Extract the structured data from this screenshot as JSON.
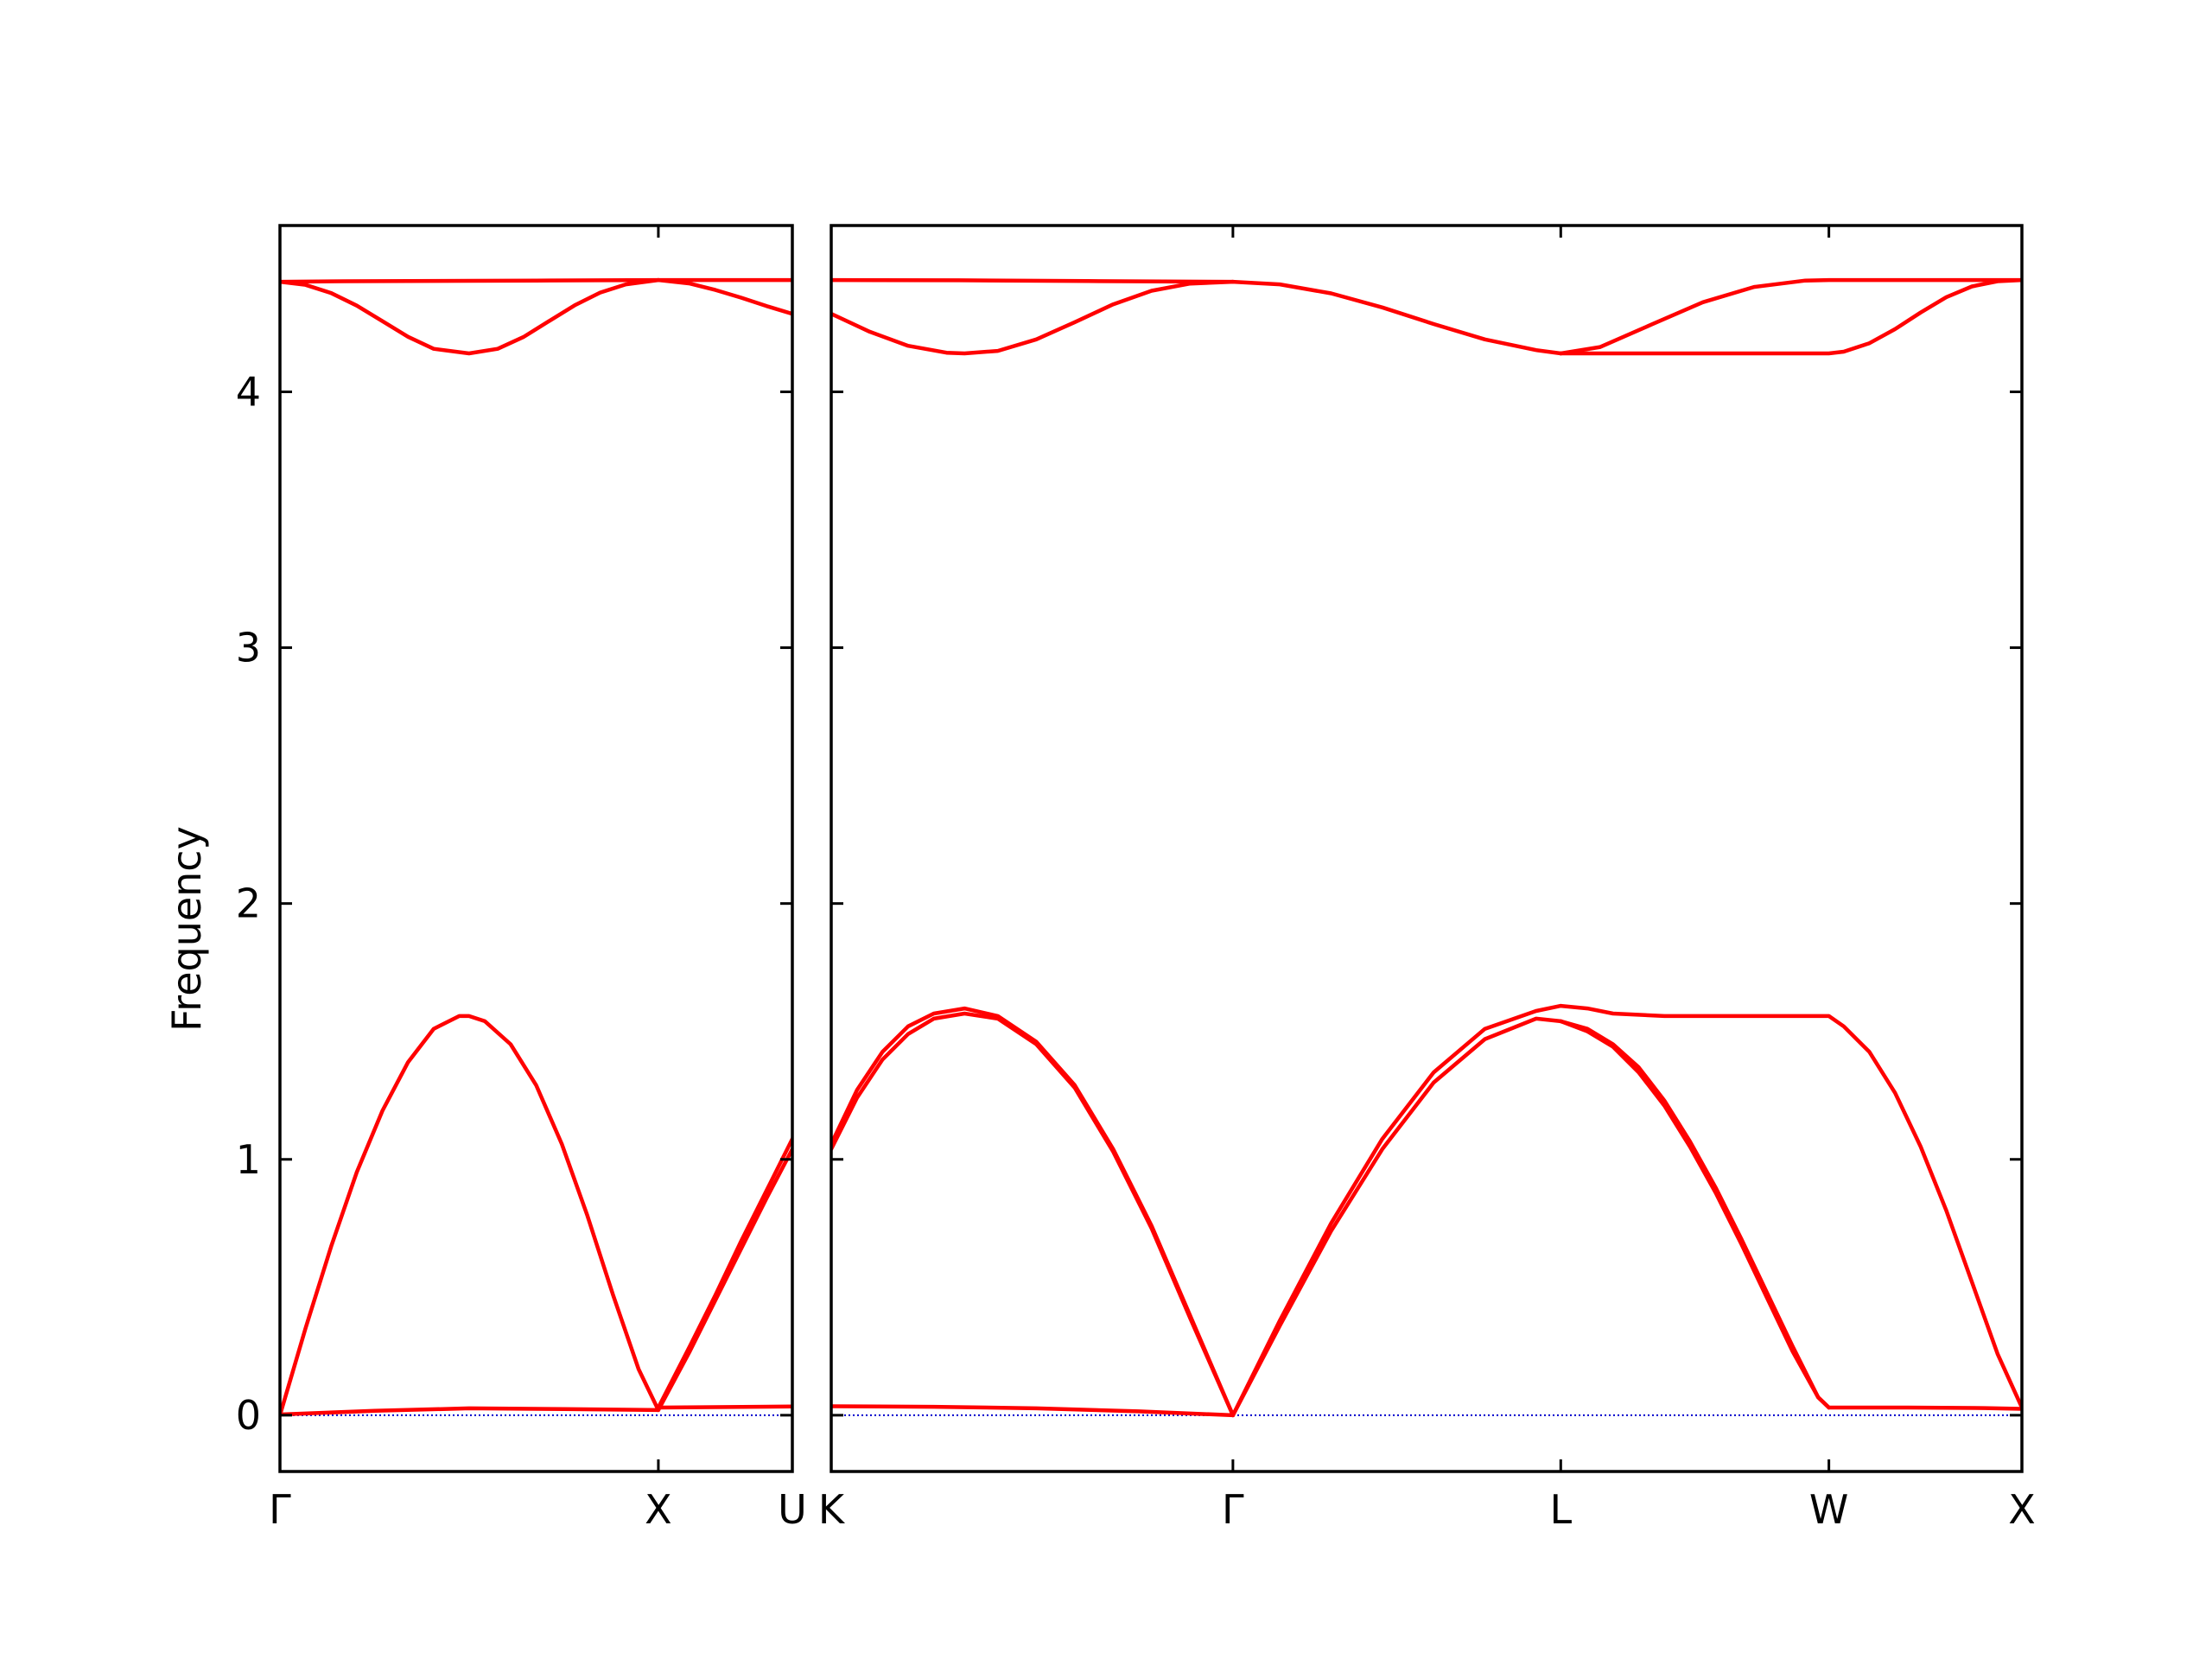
{
  "chart_data": {
    "type": "line",
    "title": "",
    "ylabel": "Frequency",
    "ylim": [
      -0.22,
      4.65
    ],
    "yticks": [
      0,
      1,
      2,
      3,
      4
    ],
    "colors": {
      "band": "#ff0000",
      "zero_line": "#0000cc",
      "axes": "#000000"
    },
    "panels": [
      {
        "name": "Γ-X-U",
        "xlim": [
          0,
          2.0
        ],
        "xticks": [
          {
            "x": 0,
            "label": "Γ"
          },
          {
            "x": 1.477,
            "label": "X"
          },
          {
            "x": 2.0,
            "label": "U"
          }
        ],
        "series": [
          {
            "x": [
              0,
              0.25,
              0.5,
              0.738,
              1.0,
              1.25,
              1.477
            ],
            "y": [
              4.43,
              4.432,
              4.433,
              4.434,
              4.435,
              4.436,
              4.437
            ]
          },
          {
            "x": [
              1.477,
              1.75,
              2.0
            ],
            "y": [
              4.437,
              4.437,
              4.437
            ]
          },
          {
            "x": [
              0,
              0.1,
              0.2,
              0.3,
              0.4,
              0.5,
              0.6,
              0.738,
              0.85,
              0.95,
              1.05,
              1.15,
              1.25,
              1.35,
              1.477
            ],
            "y": [
              4.43,
              4.418,
              4.386,
              4.337,
              4.276,
              4.215,
              4.168,
              4.15,
              4.168,
              4.214,
              4.276,
              4.338,
              4.388,
              4.42,
              4.437
            ]
          },
          {
            "x": [
              1.477,
              1.6,
              1.7,
              1.8,
              1.9,
              2.0
            ],
            "y": [
              4.437,
              4.423,
              4.398,
              4.368,
              4.335,
              4.305
            ]
          },
          {
            "x": [
              0,
              0.1,
              0.2,
              0.3,
              0.4,
              0.5,
              0.6,
              0.7,
              0.738,
              0.8,
              0.9,
              1.0,
              1.1,
              1.2,
              1.3,
              1.4,
              1.477
            ],
            "y": [
              0,
              0.34,
              0.66,
              0.95,
              1.19,
              1.38,
              1.51,
              1.56,
              1.56,
              1.54,
              1.45,
              1.29,
              1.06,
              0.78,
              0.47,
              0.18,
              0.02
            ]
          },
          {
            "x": [
              0,
              0.369,
              0.738,
              1.108,
              1.477
            ],
            "y": [
              0.003,
              0.017,
              0.027,
              0.024,
              0.02
            ]
          },
          {
            "x": [
              1.477,
              1.75,
              2.0
            ],
            "y": [
              0.03,
              0.032,
              0.034
            ]
          },
          {
            "x": [
              1.477,
              1.6,
              1.7,
              1.8,
              1.9,
              2.0
            ],
            "y": [
              0.02,
              0.25,
              0.45,
              0.65,
              0.85,
              1.04
            ]
          },
          {
            "x": [
              1.477,
              1.6,
              1.7,
              1.8,
              1.9,
              2.0
            ],
            "y": [
              0.03,
              0.27,
              0.47,
              0.68,
              0.88,
              1.08
            ]
          }
        ]
      },
      {
        "name": "K-Γ-L-W-X",
        "xlim": [
          0,
          4.645
        ],
        "xticks": [
          {
            "x": 0,
            "label": "K"
          },
          {
            "x": 1.567,
            "label": "Γ"
          },
          {
            "x": 2.846,
            "label": "L"
          },
          {
            "x": 3.892,
            "label": "W"
          },
          {
            "x": 4.645,
            "label": "X"
          }
        ],
        "series": [
          {
            "x": [
              0,
              0.5,
              1.0,
              1.567
            ],
            "y": [
              4.437,
              4.436,
              4.433,
              4.43
            ]
          },
          {
            "x": [
              0,
              0.15,
              0.3,
              0.45,
              0.52,
              0.65,
              0.8,
              0.95,
              1.1,
              1.25,
              1.4,
              1.567
            ],
            "y": [
              4.305,
              4.235,
              4.18,
              4.153,
              4.15,
              4.16,
              4.205,
              4.272,
              4.342,
              4.395,
              4.423,
              4.43
            ]
          },
          {
            "x": [
              1.567,
              1.75,
              1.95,
              2.15,
              2.35,
              2.55,
              2.75,
              2.846
            ],
            "y": [
              4.43,
              4.42,
              4.385,
              4.33,
              4.265,
              4.205,
              4.163,
              4.15
            ]
          },
          {
            "x": [
              2.846,
              3.0,
              3.2,
              3.4,
              3.6,
              3.8,
              3.892,
              4.2,
              4.645
            ],
            "y": [
              4.15,
              4.175,
              4.263,
              4.35,
              4.41,
              4.435,
              4.437,
              4.437,
              4.437
            ]
          },
          {
            "x": [
              2.846,
              3.2,
              3.6,
              3.892,
              3.95,
              4.05,
              4.15,
              4.25,
              4.35,
              4.45,
              4.55,
              4.645
            ],
            "y": [
              4.15,
              4.15,
              4.15,
              4.15,
              4.157,
              4.19,
              4.245,
              4.31,
              4.37,
              4.412,
              4.432,
              4.437
            ]
          },
          {
            "x": [
              0,
              0.1,
              0.2,
              0.3,
              0.4,
              0.52,
              0.65,
              0.8,
              0.95,
              1.1,
              1.25,
              1.4,
              1.567
            ],
            "y": [
              1.04,
              1.24,
              1.39,
              1.49,
              1.55,
              1.57,
              1.55,
              1.45,
              1.28,
              1.03,
              0.73,
              0.38,
              0.0
            ]
          },
          {
            "x": [
              0,
              0.1,
              0.2,
              0.3,
              0.4,
              0.52,
              0.65,
              0.8,
              0.95,
              1.1,
              1.25,
              1.4,
              1.567
            ],
            "y": [
              1.06,
              1.27,
              1.42,
              1.52,
              1.57,
              1.59,
              1.56,
              1.46,
              1.29,
              1.04,
              0.74,
              0.39,
              0.0
            ]
          },
          {
            "x": [
              0,
              0.4,
              0.8,
              1.2,
              1.567
            ],
            "y": [
              0.035,
              0.033,
              0.027,
              0.015,
              0.0
            ]
          },
          {
            "x": [
              1.567,
              1.75,
              1.95,
              2.15,
              2.35,
              2.55,
              2.75,
              2.846
            ],
            "y": [
              0.0,
              0.35,
              0.72,
              1.04,
              1.3,
              1.47,
              1.55,
              1.54
            ]
          },
          {
            "x": [
              1.567,
              1.75,
              1.95,
              2.15,
              2.35,
              2.55,
              2.75,
              2.846
            ],
            "y": [
              0.0,
              0.37,
              0.75,
              1.08,
              1.34,
              1.51,
              1.58,
              1.6
            ]
          },
          {
            "x": [
              2.846,
              2.95,
              3.05,
              3.25,
              3.5,
              3.75,
              3.892,
              3.95,
              4.05,
              4.15,
              4.25,
              4.35,
              4.45,
              4.55,
              4.645
            ],
            "y": [
              1.6,
              1.59,
              1.57,
              1.56,
              1.56,
              1.56,
              1.56,
              1.52,
              1.42,
              1.26,
              1.05,
              0.8,
              0.52,
              0.24,
              0.03
            ]
          },
          {
            "x": [
              2.846,
              2.95,
              3.05,
              3.15,
              3.25,
              3.35,
              3.45,
              3.55,
              3.65,
              3.75,
              3.85,
              3.892
            ],
            "y": [
              1.54,
              1.51,
              1.45,
              1.36,
              1.23,
              1.07,
              0.89,
              0.69,
              0.48,
              0.27,
              0.07,
              0.03
            ]
          },
          {
            "x": [
              2.846,
              2.95,
              3.05,
              3.15,
              3.25,
              3.35,
              3.45,
              3.55,
              3.65,
              3.75,
              3.85,
              3.892
            ],
            "y": [
              1.54,
              1.5,
              1.44,
              1.34,
              1.21,
              1.05,
              0.87,
              0.67,
              0.46,
              0.25,
              0.07,
              0.03
            ]
          },
          {
            "x": [
              3.892,
              4.2,
              4.5,
              4.645
            ],
            "y": [
              0.03,
              0.03,
              0.028,
              0.025
            ]
          }
        ]
      }
    ]
  }
}
